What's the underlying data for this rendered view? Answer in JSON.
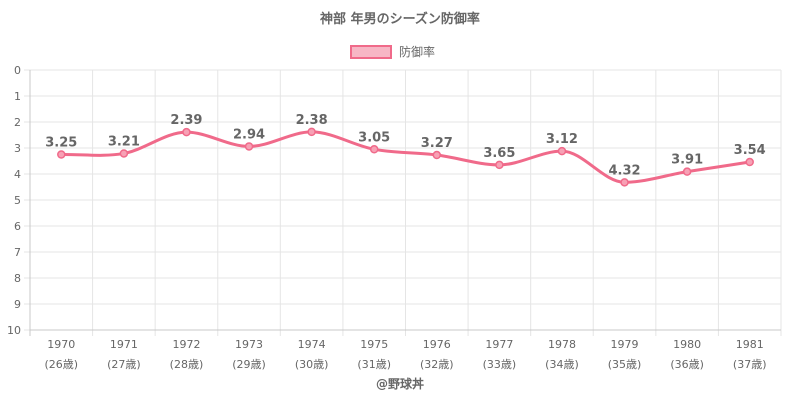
{
  "chart_data": {
    "type": "line",
    "title": "神部 年男のシーズン防御率",
    "legend": {
      "position": "top",
      "label": "防御率"
    },
    "categories": [
      "1970",
      "1971",
      "1972",
      "1973",
      "1974",
      "1975",
      "1976",
      "1977",
      "1978",
      "1979",
      "1980",
      "1981"
    ],
    "category_sublabels": [
      "(26歳)",
      "(27歳)",
      "(28歳)",
      "(29歳)",
      "(30歳)",
      "(31歳)",
      "(32歳)",
      "(33歳)",
      "(34歳)",
      "(35歳)",
      "(36歳)",
      "(37歳)"
    ],
    "series": [
      {
        "name": "防御率",
        "values": [
          3.25,
          3.21,
          2.39,
          2.94,
          2.38,
          3.05,
          3.27,
          3.65,
          3.12,
          4.32,
          3.91,
          3.54
        ]
      }
    ],
    "data_labels": [
      "3.25",
      "3.21",
      "2.39",
      "2.94",
      "2.38",
      "3.05",
      "3.27",
      "3.65",
      "3.12",
      "4.32",
      "3.91",
      "3.54"
    ],
    "y_ticks": [
      "0",
      "1",
      "2",
      "3",
      "4",
      "5",
      "6",
      "7",
      "8",
      "9",
      "10"
    ],
    "ylim": [
      0,
      10
    ],
    "y_reversed": true,
    "grid": true,
    "colors": {
      "line": "#f06a8a",
      "point_fill": "#f7a1b5",
      "legend_fill": "#f7b6c5"
    }
  },
  "credit": "@野球丼"
}
